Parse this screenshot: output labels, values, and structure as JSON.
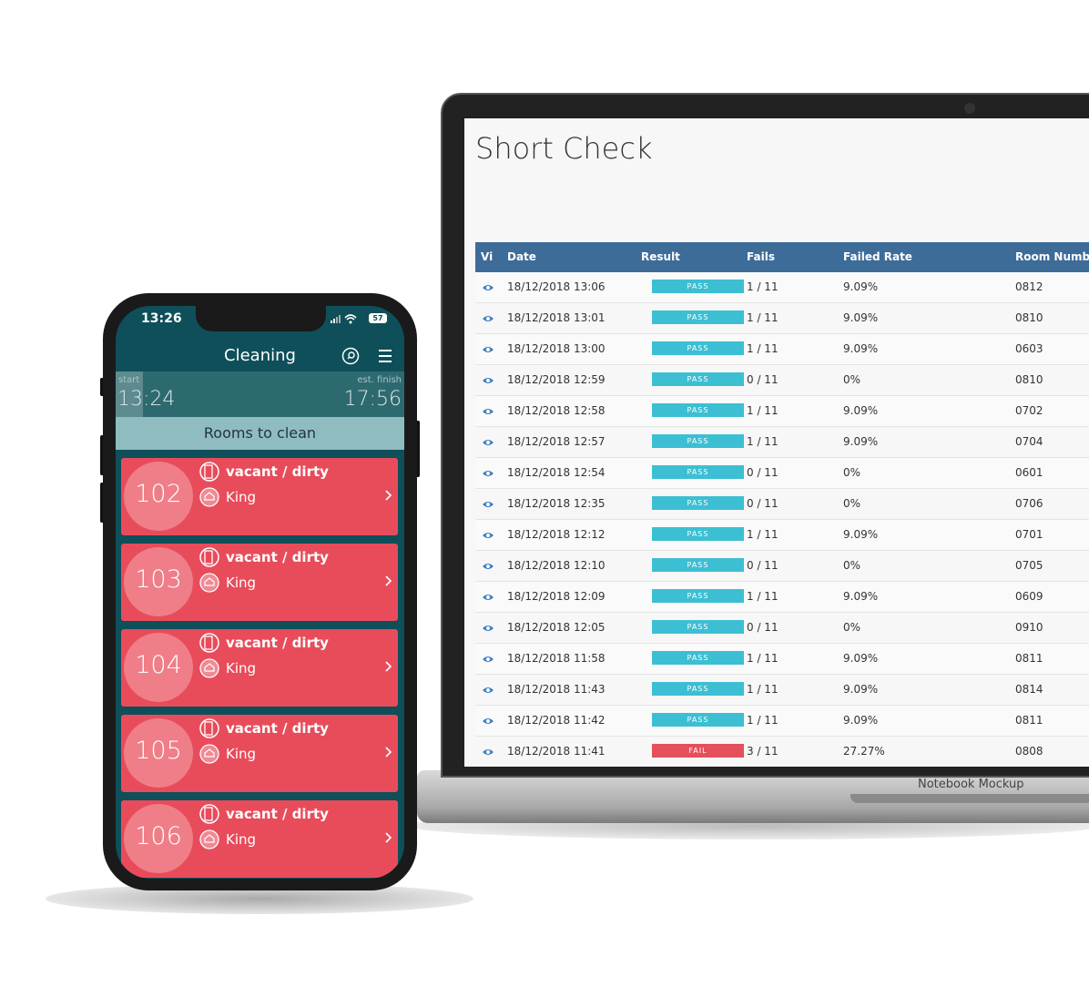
{
  "laptop": {
    "title": "Short Check",
    "brand": "Notebook Mockup",
    "columns": [
      "Vi",
      "Date",
      "Result",
      "Fails",
      "Failed Rate",
      "Room Number"
    ],
    "result_colors": {
      "PASS": "#3cbfd3",
      "FAIL": "#e4505b"
    },
    "rows": [
      [
        "18/12/2018 13:06",
        "PASS",
        "1 / 11",
        "9.09%",
        "0812"
      ],
      [
        "18/12/2018 13:01",
        "PASS",
        "1 / 11",
        "9.09%",
        "0810"
      ],
      [
        "18/12/2018 13:00",
        "PASS",
        "1 / 11",
        "9.09%",
        "0603"
      ],
      [
        "18/12/2018 12:59",
        "PASS",
        "0 / 11",
        "0%",
        "0810"
      ],
      [
        "18/12/2018 12:58",
        "PASS",
        "1 / 11",
        "9.09%",
        "0702"
      ],
      [
        "18/12/2018 12:57",
        "PASS",
        "1 / 11",
        "9.09%",
        "0704"
      ],
      [
        "18/12/2018 12:54",
        "PASS",
        "0 / 11",
        "0%",
        "0601"
      ],
      [
        "18/12/2018 12:35",
        "PASS",
        "0 / 11",
        "0%",
        "0706"
      ],
      [
        "18/12/2018 12:12",
        "PASS",
        "1 / 11",
        "9.09%",
        "0701"
      ],
      [
        "18/12/2018 12:10",
        "PASS",
        "0 / 11",
        "0%",
        "0705"
      ],
      [
        "18/12/2018 12:09",
        "PASS",
        "1 / 11",
        "9.09%",
        "0609"
      ],
      [
        "18/12/2018 12:05",
        "PASS",
        "0 / 11",
        "0%",
        "0910"
      ],
      [
        "18/12/2018 11:58",
        "PASS",
        "1 / 11",
        "9.09%",
        "0811"
      ],
      [
        "18/12/2018 11:43",
        "PASS",
        "1 / 11",
        "9.09%",
        "0814"
      ],
      [
        "18/12/2018 11:42",
        "PASS",
        "1 / 11",
        "9.09%",
        "0811"
      ],
      [
        "18/12/2018 11:41",
        "FAIL",
        "3 / 11",
        "27.27%",
        "0808"
      ]
    ]
  },
  "phone": {
    "status_time": "13:26",
    "battery": "57",
    "header": "Cleaning",
    "start_label": "start",
    "start_time": "13:24",
    "finish_label": "est. finish",
    "finish_time": "17:56",
    "section": "Rooms to clean",
    "rooms": [
      {
        "number": "102",
        "status": "vacant / dirty",
        "bed": "King"
      },
      {
        "number": "103",
        "status": "vacant / dirty",
        "bed": "King"
      },
      {
        "number": "104",
        "status": "vacant / dirty",
        "bed": "King"
      },
      {
        "number": "105",
        "status": "vacant / dirty",
        "bed": "King"
      },
      {
        "number": "106",
        "status": "vacant / dirty",
        "bed": "King"
      }
    ]
  }
}
